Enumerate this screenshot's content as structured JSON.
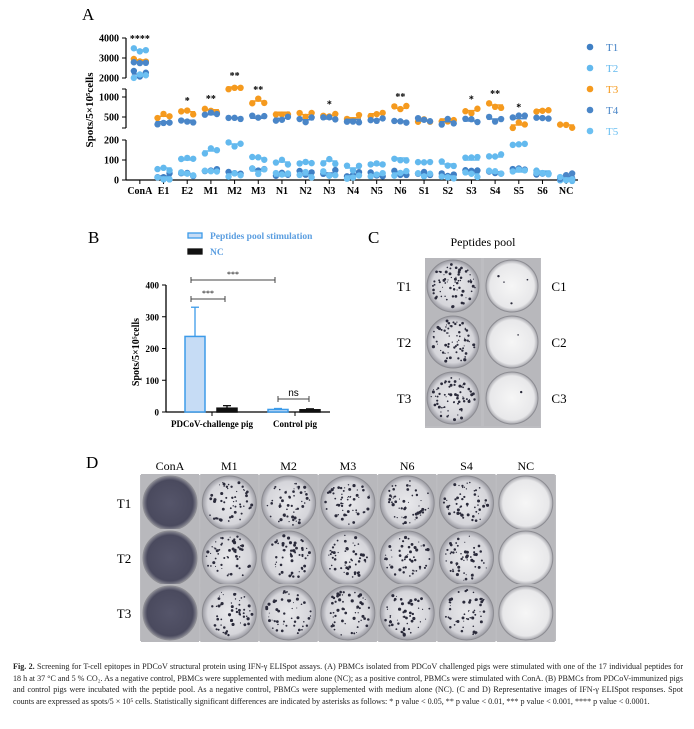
{
  "colors": {
    "T1": "#3f7fc4",
    "T2": "#63b9ee",
    "T3": "#f59a1e",
    "T4": "#4a86c8",
    "T5": "#6cc0f2",
    "bar_pep": "#c6dcf5",
    "bar_pep_edge": "#3d9be9",
    "bar_nc": "#111111"
  },
  "panel_labels": {
    "a": "A",
    "b": "B",
    "c": "C",
    "d": "D"
  },
  "chart_data": [
    {
      "type": "scatter",
      "ylabel": "Spots/5×10⁵cells",
      "yticks": [
        0,
        100,
        200,
        500,
        1000,
        2000,
        3000,
        4000
      ],
      "y_axis_break": true,
      "categories": [
        "ConA",
        "E1",
        "E2",
        "M1",
        "M2",
        "M3",
        "N1",
        "N2",
        "N3",
        "N4",
        "N5",
        "N6",
        "S1",
        "S2",
        "S3",
        "S4",
        "S5",
        "S6",
        "NC"
      ],
      "series": [
        {
          "name": "T1",
          "values": [
            2200,
            20,
            30,
            45,
            35,
            50,
            25,
            30,
            35,
            25,
            30,
            40,
            30,
            25,
            35,
            40,
            45,
            40,
            15
          ]
        },
        {
          "name": "T2",
          "values": [
            3400,
            60,
            100,
            145,
            180,
            110,
            90,
            90,
            95,
            60,
            75,
            110,
            90,
            80,
            100,
            115,
            180,
            45,
            10
          ]
        },
        {
          "name": "T3",
          "values": [
            2900,
            520,
            630,
            680,
            1250,
            900,
            620,
            560,
            540,
            480,
            580,
            720,
            420,
            450,
            660,
            800,
            300,
            680,
            300
          ]
        },
        {
          "name": "T4",
          "values": [
            2800,
            380,
            420,
            560,
            480,
            470,
            470,
            430,
            450,
            440,
            440,
            400,
            400,
            380,
            400,
            450,
            460,
            460,
            20
          ]
        },
        {
          "name": "T5",
          "values": [
            2100,
            15,
            25,
            40,
            30,
            45,
            20,
            25,
            30,
            20,
            25,
            35,
            25,
            20,
            30,
            35,
            40,
            35,
            10
          ]
        }
      ],
      "significance": [
        "****",
        "",
        "*",
        "**",
        "**",
        "**",
        "",
        "",
        "*",
        "",
        "",
        "**",
        "",
        "",
        "*",
        "**",
        "*",
        "",
        ""
      ],
      "legend": [
        "T1",
        "T2",
        "T3",
        "T4",
        "T5"
      ],
      "legend_position": "right"
    },
    {
      "type": "bar",
      "ylabel": "Spots/5×10⁵cells",
      "ylim": [
        0,
        400
      ],
      "yticks": [
        0,
        100,
        200,
        300,
        400
      ],
      "categories": [
        "PDCoV-challenge pig",
        "Control pig"
      ],
      "series": [
        {
          "name": "Peptides pool stimulation",
          "values": [
            238,
            8
          ],
          "errors": [
            92,
            3
          ]
        },
        {
          "name": "NC",
          "values": [
            12,
            7
          ],
          "errors": [
            8,
            3
          ]
        }
      ],
      "comparisons": [
        {
          "label": "***",
          "from": "PDCoV-challenge pig / Peptides pool stimulation",
          "to": "PDCoV-challenge pig / NC"
        },
        {
          "label": "***",
          "from": "PDCoV-challenge pig / Peptides pool stimulation",
          "to": "Control pig / Peptides pool stimulation"
        },
        {
          "label": "ns",
          "from": "Control pig / Peptides pool stimulation",
          "to": "Control pig / NC"
        }
      ],
      "legend_position": "top"
    }
  ],
  "panel_c": {
    "title": "Peptides pool",
    "left_labels": [
      "T1",
      "T2",
      "T3"
    ],
    "right_labels": [
      "C1",
      "C2",
      "C3"
    ]
  },
  "panel_d": {
    "columns": [
      "ConA",
      "M1",
      "M2",
      "M3",
      "N6",
      "S4",
      "NC"
    ],
    "rows": [
      "T1",
      "T2",
      "T3"
    ]
  },
  "caption": {
    "lead": "Fig. 2.",
    "text": "Screening for T-cell epitopes in PDCoV structural protein using IFN-γ ELISpot assays. (A) PBMCs isolated from PDCoV challenged pigs were stimulated with one of the 17 individual peptides for 18 h at 37 °C and 5 % CO₂. As a negative control, PBMCs were supplemented with medium alone (NC); as a positive control, PBMCs were stimulated with ConA. (B) PBMCs from PDCoV-immunized pigs and control pigs were incubated with the peptide pool. As a negative control, PBMCs were supplemented with medium alone (NC). (C and D) Representative images of IFN-γ ELISpot responses. Spot counts are expressed as spots/5 × 10⁵ cells. Statistically significant differences are indicated by asterisks as follows: * p value < 0.05, ** p value < 0.01, *** p value < 0.001, **** p value < 0.0001."
  }
}
